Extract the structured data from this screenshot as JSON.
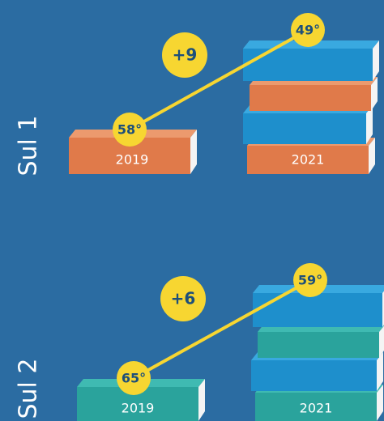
{
  "panels": [
    {
      "label": "Sul 1",
      "change": "+9",
      "left": {
        "year": "2019",
        "value": "58°"
      },
      "right": {
        "year": "2021",
        "value": "49°"
      }
    },
    {
      "label": "Sul 2",
      "change": "+6",
      "left": {
        "year": "2019",
        "value": "65°"
      },
      "right": {
        "year": "2021",
        "value": "59°"
      }
    }
  ]
}
